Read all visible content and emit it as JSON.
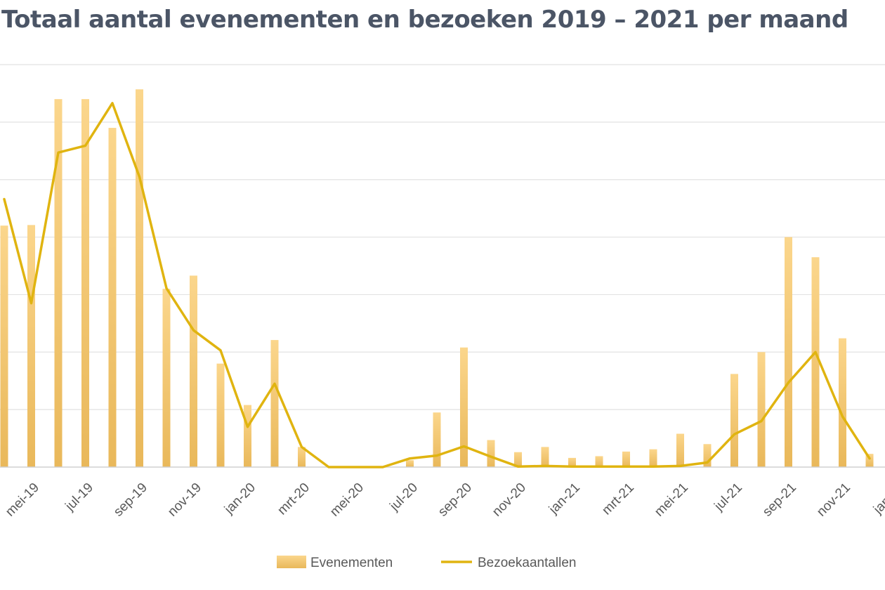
{
  "chart_data": {
    "type": "bar",
    "title": "Totaal aantal evenementen en bezoeken 2019 – 2021 per maand",
    "categories": [
      "apr-19",
      "mei-19",
      "jun-19",
      "jul-19",
      "aug-19",
      "sep-19",
      "okt-19",
      "nov-19",
      "dec-19",
      "jan-20",
      "feb-20",
      "mrt-20",
      "apr-20",
      "mei-20",
      "jun-20",
      "jul-20",
      "aug-20",
      "sep-20",
      "okt-20",
      "nov-20",
      "dec-20",
      "jan-21",
      "feb-21",
      "mrt-21",
      "apr-21",
      "mei-21",
      "jun-21",
      "jul-21",
      "aug-21",
      "sep-21",
      "okt-21",
      "nov-21",
      "dec-21"
    ],
    "tick_labels": [
      "mei-19",
      "jul-19",
      "sep-19",
      "nov-19",
      "jan-20",
      "mrt-20",
      "mei-20",
      "jul-20",
      "sep-20",
      "nov-20",
      "jan-21",
      "mrt-21",
      "mei-21",
      "jul-21",
      "sep-21",
      "nov-21",
      "jan-22"
    ],
    "ylim": [
      0,
      700
    ],
    "grid": true,
    "legend_position": "bottom",
    "series": [
      {
        "name": "Evenementen",
        "type": "bar",
        "color": "#f3c36a",
        "values": [
          420,
          421,
          640,
          640,
          590,
          657,
          310,
          333,
          180,
          108,
          221,
          35,
          0,
          0,
          0,
          12,
          95,
          208,
          47,
          26,
          35,
          16,
          19,
          27,
          31,
          58,
          40,
          162,
          200,
          400,
          365,
          224,
          23
        ]
      },
      {
        "name": "Bezoekaantallen",
        "type": "line",
        "color": "#e0b410",
        "values": [
          466,
          285,
          547,
          559,
          633,
          505,
          311,
          238,
          203,
          70,
          145,
          35,
          0,
          0,
          0,
          15,
          20,
          36,
          18,
          1,
          2,
          1,
          1,
          1,
          1,
          2,
          8,
          57,
          80,
          147,
          200,
          88,
          15
        ]
      }
    ]
  }
}
